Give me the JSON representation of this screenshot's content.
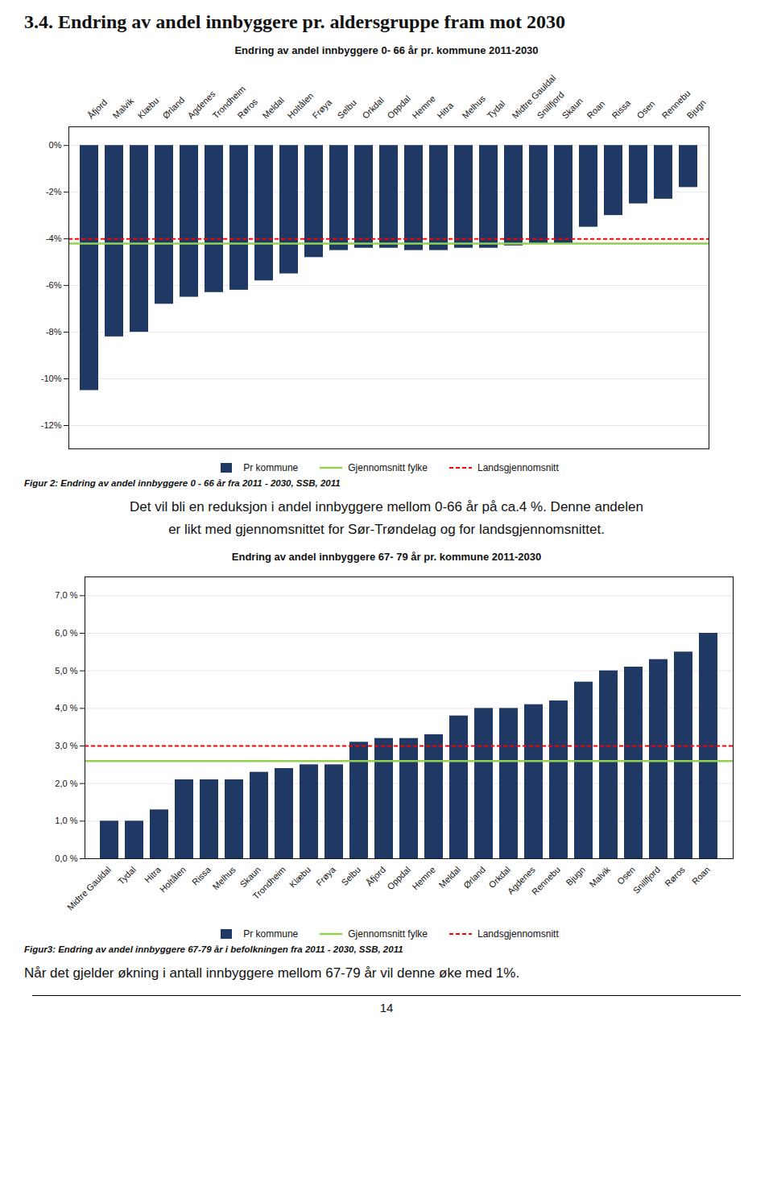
{
  "title": "3.4. Endring av andel innbyggere pr. aldersgruppe fram mot 2030",
  "chart_data": [
    {
      "type": "bar",
      "title": "Endring av andel innbyggere 0- 66 år pr. kommune 2011-2030",
      "categories": [
        "Åfjord",
        "Malvik",
        "Klæbu",
        "Ørland",
        "Agdenes",
        "Trondheim",
        "Røros",
        "Meldal",
        "Holtålen",
        "Frøya",
        "Selbu",
        "Orkdal",
        "Oppdal",
        "Hemne",
        "Hitra",
        "Melhus",
        "Tydal",
        "Midtre Gauldal",
        "Snillfjord",
        "Skaun",
        "Roan",
        "Rissa",
        "Osen",
        "Rennebu",
        "Bjugn"
      ],
      "series": [
        {
          "name": "Pr kommune",
          "type": "bar",
          "color": "#1F3864",
          "values": [
            -10.5,
            -8.2,
            -8.0,
            -6.8,
            -6.5,
            -6.3,
            -6.2,
            -5.8,
            -5.5,
            -4.8,
            -4.5,
            -4.4,
            -4.4,
            -4.5,
            -4.5,
            -4.4,
            -4.4,
            -4.3,
            -4.2,
            -4.2,
            -3.5,
            -3.0,
            -2.5,
            -2.3,
            -1.8
          ]
        },
        {
          "name": "Gjennomsnitt fylke",
          "type": "hline",
          "color": "#92D050",
          "line_style": "solid",
          "value": -4.2
        },
        {
          "name": "Landsgjennomsnitt",
          "type": "hline",
          "color": "#FF0000",
          "line_style": "dashed",
          "value": -4.0
        }
      ],
      "ylim": [
        -13,
        0.8
      ],
      "yticks": [
        {
          "value": 0,
          "label": "0%"
        },
        {
          "value": -2,
          "label": "-2%"
        },
        {
          "value": -4,
          "label": "-4%"
        },
        {
          "value": -6,
          "label": "-6%"
        },
        {
          "value": -8,
          "label": "-8%"
        },
        {
          "value": -10,
          "label": "-10%"
        },
        {
          "value": -12,
          "label": "-12%"
        }
      ],
      "grid": true,
      "legend": "bottom",
      "caption": "Figur 2: Endring av andel innbyggere 0 - 66 år fra 2011 - 2030, SSB, 2011",
      "annotations": [
        "Det vil bli en reduksjon i andel innbyggere mellom 0-66 år på ca.4 %. Denne andelen",
        "er likt med gjennomsnittet for Sør-Trøndelag og for landsgjennomsnittet."
      ]
    },
    {
      "type": "bar",
      "title": "Endring av andel innbyggere 67- 79 år pr. kommune 2011-2030",
      "categories": [
        "Midtre Gauldal",
        "Tydal",
        "Hitra",
        "Holtålen",
        "Rissa",
        "Melhus",
        "Skaun",
        "Trondheim",
        "Klæbu",
        "Frøya",
        "Selbu",
        "Åfjord",
        "Oppdal",
        "Hemne",
        "Meldal",
        "Ørland",
        "Orkdal",
        "Agdenes",
        "Rennebu",
        "Bjugn",
        "Malvik",
        "Osen",
        "Snillfjord",
        "Røros",
        "Roan"
      ],
      "series": [
        {
          "name": "Pr kommune",
          "type": "bar",
          "color": "#1F3864",
          "values": [
            1.0,
            1.0,
            1.3,
            2.1,
            2.1,
            2.1,
            2.3,
            2.4,
            2.5,
            2.5,
            3.1,
            3.2,
            3.2,
            3.3,
            3.8,
            4.0,
            4.0,
            4.1,
            4.2,
            4.7,
            5.0,
            5.1,
            5.3,
            5.5,
            6.0
          ]
        },
        {
          "name": "Gjennomsnitt fylke",
          "type": "hline",
          "color": "#92D050",
          "line_style": "solid",
          "value": 2.6
        },
        {
          "name": "Landsgjennomsnitt",
          "type": "hline",
          "color": "#FF0000",
          "line_style": "dashed",
          "value": 3.0
        }
      ],
      "ylim": [
        0,
        7.5
      ],
      "yticks": [
        {
          "value": 0.0,
          "label": "0,0 %"
        },
        {
          "value": 1.0,
          "label": "1,0 %"
        },
        {
          "value": 2.0,
          "label": "2,0 %"
        },
        {
          "value": 3.0,
          "label": "3,0 %"
        },
        {
          "value": 4.0,
          "label": "4,0 %"
        },
        {
          "value": 5.0,
          "label": "5,0 %"
        },
        {
          "value": 6.0,
          "label": "6,0 %"
        },
        {
          "value": 7.0,
          "label": "7,0 %"
        }
      ],
      "grid": true,
      "legend": "bottom",
      "caption": "Figur3: Endring av andel innbyggere 67-79 år i befolkningen fra 2011 - 2030, SSB, 2011",
      "annotations": [
        "Når det gjelder økning i antall innbyggere mellom 67-79 år vil denne øke med 1%."
      ]
    }
  ],
  "annotations": [
    "14"
  ]
}
